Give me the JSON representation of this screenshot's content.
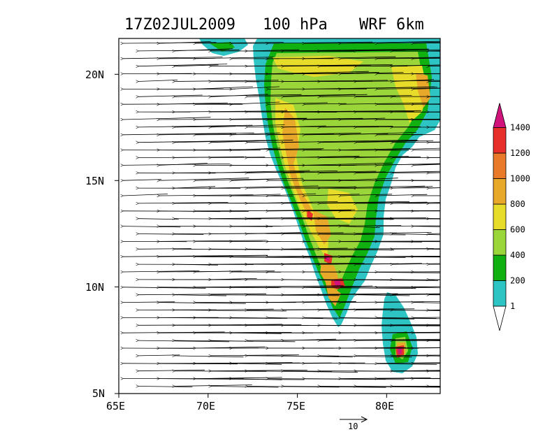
{
  "title": {
    "time": "17Z02JUL2009",
    "level": "100 hPa",
    "model": "WRF 6km"
  },
  "axes": {
    "lon_ticks": [
      "65E",
      "70E",
      "75E",
      "80E"
    ],
    "lat_ticks": [
      "5N",
      "10N",
      "15N",
      "20N"
    ],
    "lon_range": [
      65,
      83
    ],
    "lat_range": [
      5,
      21.5
    ]
  },
  "wind": {
    "direction": "easterly",
    "reference_vector_label": "10"
  },
  "colorbar": {
    "unit_levels": [
      "1",
      "200",
      "400",
      "600",
      "800",
      "1000",
      "1200",
      "1400"
    ],
    "colors": [
      "#2ec4c4",
      "#10b010",
      "#9ad63a",
      "#e8dc2a",
      "#e8a82a",
      "#e87a2a",
      "#e8302a",
      "#d0137a"
    ]
  },
  "map": {
    "sea_color": "#ffffff",
    "low_terrain_color": "#2ec4c4"
  }
}
